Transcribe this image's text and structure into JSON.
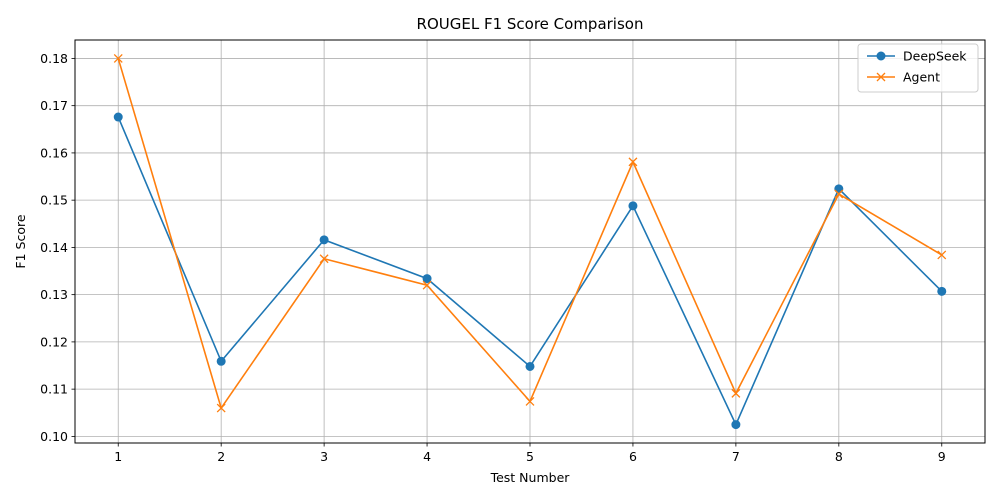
{
  "chart_data": {
    "type": "line",
    "title": "ROUGEL F1 Score Comparison",
    "xlabel": "Test Number",
    "ylabel": "F1 Score",
    "x": [
      1,
      2,
      3,
      4,
      5,
      6,
      7,
      8,
      9
    ],
    "xlim": [
      0.58,
      9.42
    ],
    "ylim": [
      0.0986,
      0.1839
    ],
    "yticks": [
      0.1,
      0.11,
      0.12,
      0.13,
      0.14,
      0.15,
      0.16,
      0.17,
      0.18
    ],
    "ytick_labels": [
      "0.10",
      "0.11",
      "0.12",
      "0.13",
      "0.14",
      "0.15",
      "0.16",
      "0.17",
      "0.18"
    ],
    "xticks": [
      1,
      2,
      3,
      4,
      5,
      6,
      7,
      8,
      9
    ],
    "xtick_labels": [
      "1",
      "2",
      "3",
      "4",
      "5",
      "6",
      "7",
      "8",
      "9"
    ],
    "grid": true,
    "legend_position": "top-right",
    "series": [
      {
        "name": "DeepSeek",
        "color": "#1f77b4",
        "marker": "circle",
        "values": [
          0.1676,
          0.1159,
          0.1416,
          0.1334,
          0.1148,
          0.1488,
          0.1025,
          0.1524,
          0.1307
        ]
      },
      {
        "name": "Agent",
        "color": "#ff7f0e",
        "marker": "x",
        "values": [
          0.18,
          0.106,
          0.1376,
          0.132,
          0.1074,
          0.1581,
          0.1091,
          0.1513,
          0.1384
        ]
      }
    ]
  }
}
